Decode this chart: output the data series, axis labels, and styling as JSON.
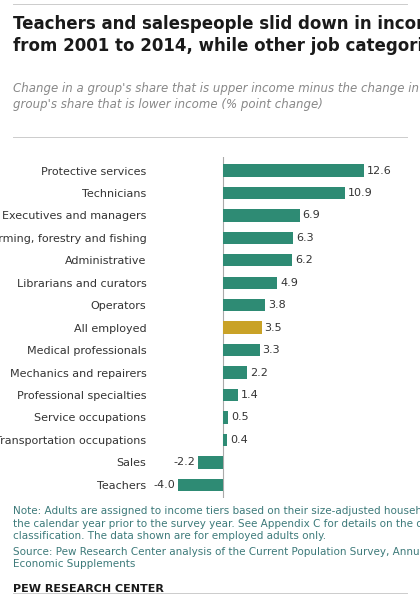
{
  "title": "Teachers and salespeople slid down in income status\nfrom 2001 to 2014, while other job categories rose",
  "subtitle": "Change in a group's share that is upper income minus the change in the\ngroup's share that is lower income (% point change)",
  "categories": [
    "Protective services",
    "Technicians",
    "Executives and managers",
    "Farming, forestry and fishing",
    "Administrative",
    "Librarians and curators",
    "Operators",
    "All employed",
    "Medical professionals",
    "Mechanics and repairers",
    "Professional specialties",
    "Service occupations",
    "Transportation occupations",
    "Sales",
    "Teachers"
  ],
  "values": [
    12.6,
    10.9,
    6.9,
    6.3,
    6.2,
    4.9,
    3.8,
    3.5,
    3.3,
    2.2,
    1.4,
    0.5,
    0.4,
    -2.2,
    -4.0
  ],
  "bar_colors": [
    "#2e8b74",
    "#2e8b74",
    "#2e8b74",
    "#2e8b74",
    "#2e8b74",
    "#2e8b74",
    "#2e8b74",
    "#c9a227",
    "#2e8b74",
    "#2e8b74",
    "#2e8b74",
    "#2e8b74",
    "#2e8b74",
    "#2e8b74",
    "#2e8b74"
  ],
  "note": "Note: Adults are assigned to income tiers based on their size-adjusted household income in\nthe calendar year prior to the survey year. See Appendix C for details on the occupational\nclassification. The data shown are for employed adults only.",
  "source": "Source: Pew Research Center analysis of the Current Population Survey, Annual Social and\nEconomic Supplements",
  "brand": "PEW RESEARCH CENTER",
  "title_fontsize": 12,
  "subtitle_fontsize": 8.5,
  "label_fontsize": 8.0,
  "value_fontsize": 8.0,
  "note_fontsize": 7.5,
  "xlim": [
    -6,
    15
  ],
  "background_color": "#ffffff",
  "title_color": "#1a1a1a",
  "subtitle_color": "#888888",
  "note_color": "#3d7a7a",
  "bar_height": 0.55
}
